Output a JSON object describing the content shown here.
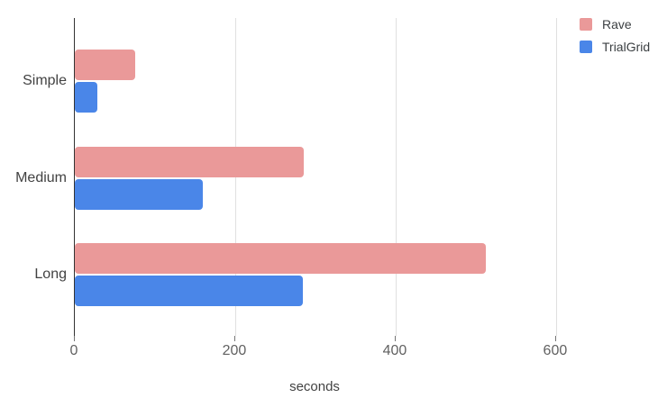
{
  "chart_data": {
    "type": "bar",
    "orientation": "horizontal",
    "title": "",
    "categories": [
      "Simple",
      "Medium",
      "Long"
    ],
    "series": [
      {
        "name": "Rave",
        "color": "#ea9999",
        "values": [
          75,
          285,
          513
        ]
      },
      {
        "name": "TrialGrid",
        "color": "#4a86e8",
        "values": [
          28,
          160,
          284
        ]
      }
    ],
    "xlabel": "seconds",
    "ylabel": "",
    "x_ticks": [
      0,
      200,
      400,
      600
    ],
    "xlim": [
      0,
      708
    ],
    "grid": true,
    "legend_position": "top-right"
  },
  "colors": {
    "background": "#ffffff",
    "axis_line": "#333333",
    "gridline": "#e0e0e0",
    "tick_mark": "#757575",
    "tick_label": "#616161",
    "category_label": "#424242",
    "axis_title": "#424242",
    "legend_text": "#3c4043"
  }
}
